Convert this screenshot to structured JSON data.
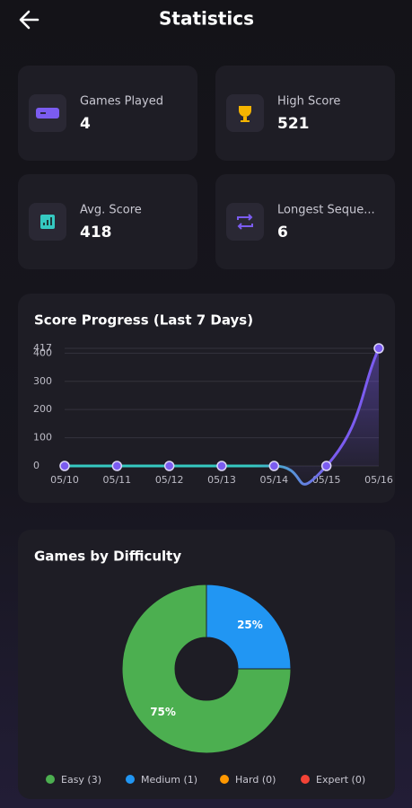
{
  "header": {
    "title": "Statistics"
  },
  "stats": [
    {
      "label": "Games Played",
      "value": 4
    },
    {
      "label": "High Score",
      "value": 521
    },
    {
      "label": "Avg. Score",
      "value": 418
    },
    {
      "label": "Longest Seque...",
      "value": 6
    }
  ],
  "chart_data": [
    {
      "type": "line",
      "title": "Score Progress (Last 7 Days)",
      "categories": [
        "05/10",
        "05/11",
        "05/12",
        "05/13",
        "05/14",
        "05/15",
        "05/16"
      ],
      "values": [
        0,
        0,
        0,
        0,
        0,
        0,
        417
      ],
      "color": "#7b5cf0",
      "gradient_start_color": "#35c9c1",
      "ylim": [
        0,
        417
      ],
      "yticks": [
        0,
        100,
        200,
        300,
        400,
        417
      ],
      "grid": true
    },
    {
      "type": "pie",
      "title": "Games by Difficulty",
      "categories": [
        "Easy (3)",
        "Medium (1)",
        "Hard (0)",
        "Expert (0)"
      ],
      "values": [
        75,
        25,
        0,
        0
      ],
      "value_labels": [
        "75%",
        "25%",
        null,
        null
      ],
      "colors": [
        "#4caf50",
        "#2196f3",
        "#ff9800",
        "#f44336"
      ],
      "donut": true
    }
  ]
}
